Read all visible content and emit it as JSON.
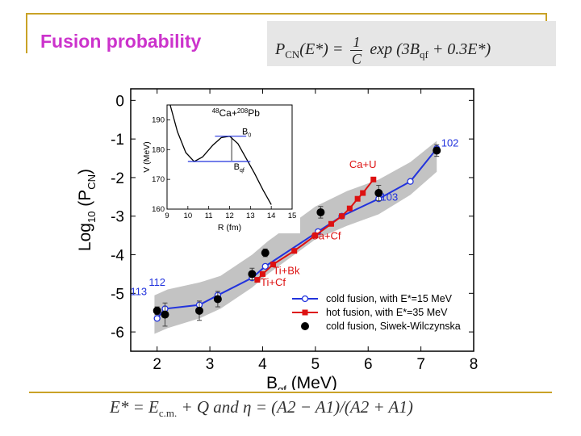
{
  "slide": {
    "title": "Fusion probability",
    "top_formula": {
      "lhs": "P",
      "lhs_sub": "CN",
      "lhs_args": "(E*) =",
      "numerator": "1",
      "denominator": "C",
      "rhs": "exp (3B",
      "rhs_sub": "qf",
      "rhs_tail": " + 0.3E*)"
    },
    "bottom_formula": {
      "text": "E* = E",
      "sub": "c.m.",
      "tail": " + Q  and  η = (A2 − A1)/(A2 + A1)"
    }
  },
  "chart_data": [
    {
      "type": "line",
      "xlabel": "B",
      "xlabel_sub": "qf",
      "xlabel_unit": " (MeV)",
      "ylabel": "Log",
      "ylabel_sub": "10",
      "ylabel_tail": " (P",
      "ylabel_sub2": "CN",
      "ylabel_end": ")",
      "xlim": [
        1.5,
        8
      ],
      "ylim": [
        -6.5,
        0.3
      ],
      "xticks": [
        2,
        3,
        4,
        5,
        6,
        7,
        8
      ],
      "yticks": [
        0,
        -1,
        -2,
        -3,
        -4,
        -5,
        -6
      ],
      "band": {
        "x": [
          1.95,
          2.2,
          2.8,
          3.2,
          3.8,
          4.1,
          5.0,
          5.6,
          6.2,
          6.8,
          7.3
        ],
        "upper": [
          -5.05,
          -4.9,
          -4.72,
          -4.55,
          -4.0,
          -3.65,
          -2.75,
          -2.35,
          -2.05,
          -1.6,
          -1.05
        ],
        "lower": [
          -6.05,
          -5.9,
          -5.65,
          -5.4,
          -4.85,
          -4.5,
          -3.6,
          -3.25,
          -2.95,
          -2.45,
          -1.85
        ]
      },
      "series": [
        {
          "name": "cold fusion, with E*=15 MeV",
          "color": "#2233dd",
          "marker": "open-circle",
          "x": [
            2.0,
            2.15,
            2.8,
            3.15,
            3.8,
            4.05,
            5.05,
            5.5,
            6.2,
            6.8,
            7.3
          ],
          "y": [
            -5.65,
            -5.4,
            -5.3,
            -5.05,
            -4.6,
            -4.3,
            -3.4,
            -3.0,
            -2.55,
            -2.1,
            -1.25
          ]
        },
        {
          "name": "hot fusion, with E*=35 MeV",
          "color": "#dd1111",
          "marker": "square",
          "x": [
            3.9,
            4.0,
            4.2,
            4.6,
            5.0,
            5.3,
            5.5,
            5.65,
            5.8,
            5.9,
            6.1
          ],
          "y": [
            -4.65,
            -4.5,
            -4.25,
            -3.9,
            -3.5,
            -3.2,
            -3.0,
            -2.8,
            -2.55,
            -2.4,
            -2.05
          ]
        },
        {
          "name": "cold fusion, Siwek-Wilczynska",
          "color": "#000000",
          "marker": "filled-circle",
          "line": false,
          "x": [
            2.0,
            2.15,
            2.8,
            3.15,
            3.8,
            4.05,
            5.1,
            6.2,
            7.3
          ],
          "y": [
            -5.45,
            -5.55,
            -5.45,
            -5.15,
            -4.5,
            -3.95,
            -2.9,
            -2.4,
            -1.3
          ],
          "err": [
            0.1,
            0.3,
            0.25,
            0.2,
            0.15,
            0.1,
            0.15,
            0.2,
            0.15
          ]
        }
      ],
      "annotations": [
        {
          "text": "102",
          "color": "#2233dd",
          "x": 7.55,
          "y": -1.2
        },
        {
          "text": "103",
          "color": "#2233dd",
          "x": 6.4,
          "y": -2.6
        },
        {
          "text": "112",
          "color": "#2233dd",
          "x": 2.0,
          "y": -4.8
        },
        {
          "text": "113",
          "color": "#2233dd",
          "x": 1.65,
          "y": -5.05
        },
        {
          "text": "Ca+U",
          "color": "#dd1111",
          "x": 5.9,
          "y": -1.75
        },
        {
          "text": "Ca+Cf",
          "color": "#dd1111",
          "x": 5.2,
          "y": -3.6
        },
        {
          "text": "Ti+Bk",
          "color": "#dd1111",
          "x": 4.45,
          "y": -4.5
        },
        {
          "text": "Ti+Cf",
          "color": "#dd1111",
          "x": 4.2,
          "y": -4.8
        }
      ],
      "legend_position": "bottom-right"
    },
    {
      "type": "line",
      "title": "48Ca+208Pb",
      "title_parts": {
        "a_sup": "48",
        "a": "Ca+",
        "b_sup": "208",
        "b": "Pb"
      },
      "xlabel": "R (fm)",
      "ylabel": "V (MeV)",
      "xlim": [
        9,
        15
      ],
      "ylim": [
        160,
        195
      ],
      "xticks": [
        9,
        10,
        11,
        12,
        13,
        14,
        15
      ],
      "yticks": [
        160,
        170,
        180,
        190
      ],
      "series": [
        {
          "name": "potential",
          "color": "#000000",
          "x": [
            9.15,
            9.5,
            9.9,
            10.3,
            10.7,
            11.2,
            11.6,
            12.0,
            12.4,
            12.8,
            13.2,
            13.6,
            14.0,
            14.2
          ],
          "y": [
            195,
            186,
            179,
            176,
            177.5,
            181.5,
            184,
            184.5,
            182,
            177,
            172,
            166.5,
            161.5,
            159
          ]
        }
      ],
      "reference_lines": [
        {
          "label": "B",
          "label_sub": "0",
          "y": 184.5,
          "x1": 11.3,
          "x2": 12.8
        },
        {
          "label": "B",
          "label_sub": "qf",
          "y": 176,
          "x1": 10.0,
          "x2": 13.0
        }
      ]
    }
  ]
}
